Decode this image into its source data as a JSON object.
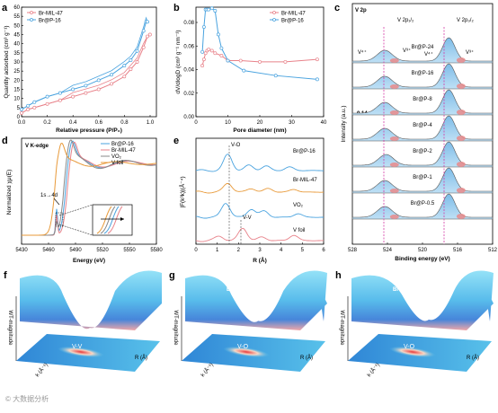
{
  "panels": {
    "a": {
      "label": "a",
      "xlabel": "Relative pressure (P/P₀)",
      "ylabel": "Quantity adsorbed (cm³ g⁻¹)",
      "xticks": [
        "0.0",
        "0.2",
        "0.4",
        "0.6",
        "0.8",
        "1.0"
      ],
      "yticks": [
        "0",
        "5",
        "10",
        "15",
        "20",
        "25",
        "30",
        "35",
        "40",
        "45",
        "50",
        "55",
        "60"
      ],
      "legend": [
        "Br-MIL-47",
        "Br@P-16"
      ]
    },
    "b": {
      "label": "b",
      "xlabel": "Pore diameter (nm)",
      "ylabel": "dV/dlogD (cm³ g⁻¹ nm⁻¹)",
      "xticks": [
        "0",
        "10",
        "20",
        "30",
        "40"
      ],
      "yticks": [
        "0.00",
        "0.02",
        "0.04",
        "0.06",
        "0.08"
      ],
      "legend": [
        "Br-MIL-47",
        "Br@P-16"
      ]
    },
    "c": {
      "label": "c",
      "title": "V 2p",
      "peak_labels": [
        "V 2p₁/₂",
        "V 2p₃/₂"
      ],
      "species": [
        "V⁴⁺",
        "V³⁺",
        "V⁴⁺",
        "V³⁺"
      ],
      "shift": "0.14 eV",
      "samples": [
        "Br@P-24",
        "Br@P-16",
        "Br@P-8",
        "Br@P-4",
        "Br@P-2",
        "Br@P-1",
        "Br@P-0.5"
      ],
      "xlabel": "Binding energy (eV)",
      "ylabel": "Intensity (a.u.)",
      "xticks": [
        "528",
        "524",
        "520",
        "516",
        "512"
      ]
    },
    "d": {
      "label": "d",
      "title": "V K-edge",
      "xlabel": "Energy (eV)",
      "ylabel": "Normalized χμ(E)",
      "xticks": [
        "5430",
        "5460",
        "5490",
        "5520",
        "5550",
        "5580"
      ],
      "legend": [
        "Br@P-16",
        "Br-MIL-47",
        "VO₂",
        "V foil"
      ],
      "annotation": "1s→4d"
    },
    "e": {
      "label": "e",
      "xlabel": "R (Å)",
      "ylabel": "|F(k³k)|(Å⁻⁴)",
      "xticks": [
        "0",
        "1",
        "2",
        "3",
        "4",
        "5",
        "6"
      ],
      "bond_vo": "V-O",
      "bond_vv": "V-V",
      "series_labels": [
        "Br@P-16",
        "Br-MIL-47",
        "VO₂",
        "V foil"
      ]
    },
    "f": {
      "label": "f",
      "sample": "V foil",
      "bond": "V-V",
      "zlabel": "WT-magnitude",
      "xlabel": "R (Å)",
      "ylabel": "k (Å⁻¹)"
    },
    "g": {
      "label": "g",
      "sample": "Br-MIL-47",
      "bond": "V-O",
      "zlabel": "WT-magnitude",
      "xlabel": "R (Å)",
      "ylabel": "k (Å⁻¹)"
    },
    "h": {
      "label": "h",
      "sample": "Br@P-16",
      "bond": "V-O",
      "zlabel": "WT-magnitude",
      "xlabel": "R (Å)",
      "ylabel": "k (Å⁻¹)"
    }
  },
  "watermark": "© 大数据分析",
  "colors": {
    "red": "#e8828a",
    "blue": "#4aa3df",
    "orange": "#e89a3a",
    "grey": "#888888",
    "magenta": "#d63aa6"
  },
  "chart_data": [
    {
      "type": "line",
      "panel": "a",
      "xlim": [
        0,
        1.05
      ],
      "ylim": [
        0,
        60
      ],
      "series": [
        {
          "name": "Br-MIL-47",
          "x": [
            0.0,
            0.05,
            0.1,
            0.2,
            0.3,
            0.4,
            0.5,
            0.6,
            0.7,
            0.8,
            0.85,
            0.9,
            0.95,
            0.98,
            1.0
          ],
          "y": [
            2,
            4,
            5,
            7,
            9,
            11,
            13,
            15,
            18,
            22,
            26,
            30,
            38,
            44,
            45
          ]
        },
        {
          "name": "Br@P-16",
          "x": [
            0.0,
            0.05,
            0.1,
            0.2,
            0.3,
            0.4,
            0.5,
            0.6,
            0.7,
            0.8,
            0.85,
            0.9,
            0.95,
            0.97,
            0.98
          ],
          "y": [
            4,
            6,
            8,
            11,
            13,
            15,
            17,
            20,
            23,
            28,
            31,
            36,
            47,
            52,
            52
          ]
        }
      ]
    },
    {
      "type": "line",
      "panel": "b",
      "xlim": [
        0,
        40
      ],
      "ylim": [
        0,
        0.085
      ],
      "series": [
        {
          "name": "Br-MIL-47",
          "x": [
            2,
            2.5,
            3,
            3.5,
            4,
            5,
            6,
            8,
            10,
            14,
            20,
            28,
            38
          ],
          "y": [
            0.041,
            0.046,
            0.051,
            0.053,
            0.054,
            0.053,
            0.051,
            0.049,
            0.045,
            0.045,
            0.044,
            0.044,
            0.046
          ]
        },
        {
          "name": "Br@P-16",
          "x": [
            2,
            2.5,
            3,
            3.5,
            4,
            5,
            6,
            7,
            8,
            10,
            15,
            25,
            38
          ],
          "y": [
            0.052,
            0.072,
            0.086,
            0.086,
            0.086,
            0.087,
            0.085,
            0.066,
            0.055,
            0.045,
            0.037,
            0.033,
            0.03
          ]
        }
      ]
    }
  ]
}
